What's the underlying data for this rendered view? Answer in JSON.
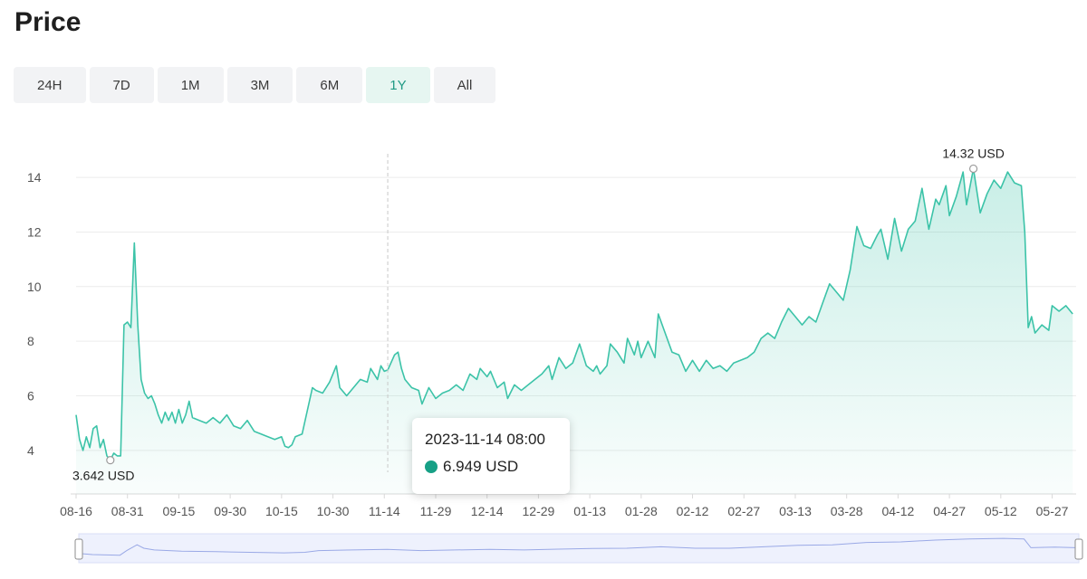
{
  "page": {
    "title": "Price"
  },
  "range_tabs": [
    "24H",
    "7D",
    "1M",
    "3M",
    "6M",
    "1Y",
    "All"
  ],
  "active_range": "1Y",
  "colors": {
    "line": "#3cc3a8",
    "accent": "#1f9a84",
    "tooltip_dot": "#17a086",
    "navigator_line": "#9aa9e6"
  },
  "tooltip": {
    "time": "2023-11-14 08:00",
    "value": "6.949 USD"
  },
  "annotations": {
    "max_label": "14.32 USD",
    "min_label": "3.642 USD"
  },
  "chart_data": {
    "type": "area",
    "title": "",
    "xlabel": "",
    "ylabel": "",
    "unit": "USD",
    "y_ticks": [
      4,
      6,
      8,
      10,
      12,
      14
    ],
    "x_tick_labels": [
      "08-16",
      "08-31",
      "09-15",
      "09-30",
      "10-15",
      "10-30",
      "11-14",
      "11-29",
      "12-14",
      "12-29",
      "01-13",
      "01-28",
      "02-12",
      "02-27",
      "03-13",
      "03-28",
      "04-12",
      "04-27",
      "05-12",
      "05-27"
    ],
    "ylim": [
      3.2,
      14.6
    ],
    "xlim": [
      0,
      292
    ],
    "grid": true,
    "x_interval_days": 15,
    "series": [
      {
        "points": [
          [
            0,
            5.3
          ],
          [
            1,
            4.4
          ],
          [
            2,
            4.0
          ],
          [
            3,
            4.5
          ],
          [
            4,
            4.1
          ],
          [
            5,
            4.8
          ],
          [
            6,
            4.9
          ],
          [
            7,
            4.1
          ],
          [
            8,
            4.4
          ],
          [
            9,
            3.8
          ],
          [
            10,
            3.642
          ],
          [
            11,
            3.9
          ],
          [
            12,
            3.8
          ],
          [
            13,
            3.8
          ],
          [
            14,
            8.6
          ],
          [
            15,
            8.7
          ],
          [
            16,
            8.5
          ],
          [
            17,
            11.6
          ],
          [
            18,
            8.6
          ],
          [
            19,
            6.6
          ],
          [
            20,
            6.1
          ],
          [
            21,
            5.9
          ],
          [
            22,
            6.0
          ],
          [
            23,
            5.7
          ],
          [
            24,
            5.3
          ],
          [
            25,
            5.0
          ],
          [
            26,
            5.4
          ],
          [
            27,
            5.1
          ],
          [
            28,
            5.4
          ],
          [
            29,
            5.0
          ],
          [
            30,
            5.5
          ],
          [
            31,
            5.0
          ],
          [
            32,
            5.3
          ],
          [
            33,
            5.8
          ],
          [
            34,
            5.2
          ],
          [
            36,
            5.1
          ],
          [
            38,
            5.0
          ],
          [
            40,
            5.2
          ],
          [
            42,
            5.0
          ],
          [
            44,
            5.3
          ],
          [
            46,
            4.9
          ],
          [
            48,
            4.8
          ],
          [
            50,
            5.1
          ],
          [
            52,
            4.7
          ],
          [
            54,
            4.6
          ],
          [
            56,
            4.5
          ],
          [
            58,
            4.4
          ],
          [
            60,
            4.5
          ],
          [
            61,
            4.15
          ],
          [
            62,
            4.1
          ],
          [
            63,
            4.2
          ],
          [
            64,
            4.5
          ],
          [
            66,
            4.6
          ],
          [
            69,
            6.3
          ],
          [
            70,
            6.2
          ],
          [
            72,
            6.1
          ],
          [
            74,
            6.5
          ],
          [
            76,
            7.1
          ],
          [
            77,
            6.3
          ],
          [
            79,
            6.0
          ],
          [
            81,
            6.3
          ],
          [
            83,
            6.6
          ],
          [
            85,
            6.5
          ],
          [
            86,
            7.0
          ],
          [
            88,
            6.6
          ],
          [
            89,
            7.1
          ],
          [
            90,
            6.9
          ],
          [
            91,
            6.949
          ],
          [
            93,
            7.5
          ],
          [
            94,
            7.6
          ],
          [
            95,
            7.0
          ],
          [
            96,
            6.6
          ],
          [
            98,
            6.3
          ],
          [
            100,
            6.2
          ],
          [
            101,
            5.7
          ],
          [
            103,
            6.3
          ],
          [
            105,
            5.9
          ],
          [
            107,
            6.1
          ],
          [
            109,
            6.2
          ],
          [
            111,
            6.4
          ],
          [
            113,
            6.2
          ],
          [
            115,
            6.8
          ],
          [
            117,
            6.6
          ],
          [
            118,
            7.0
          ],
          [
            120,
            6.7
          ],
          [
            121,
            6.9
          ],
          [
            123,
            6.3
          ],
          [
            125,
            6.5
          ],
          [
            126,
            5.9
          ],
          [
            128,
            6.4
          ],
          [
            130,
            6.2
          ],
          [
            132,
            6.4
          ],
          [
            134,
            6.6
          ],
          [
            136,
            6.8
          ],
          [
            138,
            7.1
          ],
          [
            139,
            6.6
          ],
          [
            141,
            7.4
          ],
          [
            143,
            7.0
          ],
          [
            145,
            7.2
          ],
          [
            147,
            7.9
          ],
          [
            149,
            7.1
          ],
          [
            151,
            6.9
          ],
          [
            152,
            7.1
          ],
          [
            153,
            6.8
          ],
          [
            155,
            7.1
          ],
          [
            156,
            7.9
          ],
          [
            158,
            7.6
          ],
          [
            160,
            7.2
          ],
          [
            161,
            8.1
          ],
          [
            163,
            7.5
          ],
          [
            164,
            8.0
          ],
          [
            165,
            7.4
          ],
          [
            167,
            8.0
          ],
          [
            169,
            7.4
          ],
          [
            170,
            9.0
          ],
          [
            172,
            8.3
          ],
          [
            174,
            7.6
          ],
          [
            176,
            7.5
          ],
          [
            178,
            6.9
          ],
          [
            180,
            7.3
          ],
          [
            182,
            6.9
          ],
          [
            184,
            7.3
          ],
          [
            186,
            7.0
          ],
          [
            188,
            7.1
          ],
          [
            190,
            6.9
          ],
          [
            192,
            7.2
          ],
          [
            194,
            7.3
          ],
          [
            196,
            7.4
          ],
          [
            198,
            7.6
          ],
          [
            200,
            8.1
          ],
          [
            202,
            8.3
          ],
          [
            204,
            8.1
          ],
          [
            206,
            8.7
          ],
          [
            208,
            9.2
          ],
          [
            210,
            8.9
          ],
          [
            212,
            8.6
          ],
          [
            214,
            8.9
          ],
          [
            216,
            8.7
          ],
          [
            218,
            9.4
          ],
          [
            220,
            10.1
          ],
          [
            222,
            9.8
          ],
          [
            224,
            9.5
          ],
          [
            226,
            10.6
          ],
          [
            228,
            12.2
          ],
          [
            230,
            11.5
          ],
          [
            232,
            11.4
          ],
          [
            234,
            11.9
          ],
          [
            235,
            12.1
          ],
          [
            237,
            11.0
          ],
          [
            239,
            12.5
          ],
          [
            241,
            11.3
          ],
          [
            243,
            12.1
          ],
          [
            245,
            12.4
          ],
          [
            247,
            13.6
          ],
          [
            249,
            12.1
          ],
          [
            251,
            13.2
          ],
          [
            252,
            13.0
          ],
          [
            254,
            13.7
          ],
          [
            255,
            12.6
          ],
          [
            257,
            13.3
          ],
          [
            259,
            14.2
          ],
          [
            260,
            13.0
          ],
          [
            262,
            14.32
          ],
          [
            264,
            12.7
          ],
          [
            266,
            13.4
          ],
          [
            268,
            13.9
          ],
          [
            270,
            13.6
          ],
          [
            272,
            14.2
          ],
          [
            274,
            13.8
          ],
          [
            276,
            13.7
          ],
          [
            277,
            12.0
          ],
          [
            278,
            8.5
          ],
          [
            279,
            8.9
          ],
          [
            280,
            8.3
          ],
          [
            282,
            8.6
          ],
          [
            284,
            8.4
          ],
          [
            285,
            9.3
          ],
          [
            287,
            9.1
          ],
          [
            289,
            9.3
          ],
          [
            291,
            9.0
          ]
        ]
      }
    ],
    "navigator_profile": [
      [
        0,
        0.32
      ],
      [
        4,
        0.28
      ],
      [
        8,
        0.27
      ],
      [
        12,
        0.26
      ],
      [
        14,
        0.42
      ],
      [
        17,
        0.62
      ],
      [
        19,
        0.5
      ],
      [
        22,
        0.44
      ],
      [
        30,
        0.4
      ],
      [
        40,
        0.38
      ],
      [
        50,
        0.36
      ],
      [
        60,
        0.34
      ],
      [
        66,
        0.36
      ],
      [
        70,
        0.42
      ],
      [
        80,
        0.44
      ],
      [
        90,
        0.46
      ],
      [
        100,
        0.42
      ],
      [
        110,
        0.44
      ],
      [
        120,
        0.46
      ],
      [
        130,
        0.44
      ],
      [
        140,
        0.47
      ],
      [
        150,
        0.49
      ],
      [
        160,
        0.5
      ],
      [
        170,
        0.55
      ],
      [
        180,
        0.5
      ],
      [
        190,
        0.5
      ],
      [
        200,
        0.55
      ],
      [
        210,
        0.6
      ],
      [
        220,
        0.62
      ],
      [
        230,
        0.7
      ],
      [
        240,
        0.72
      ],
      [
        250,
        0.78
      ],
      [
        260,
        0.82
      ],
      [
        270,
        0.84
      ],
      [
        276,
        0.82
      ],
      [
        278,
        0.52
      ],
      [
        285,
        0.54
      ],
      [
        291,
        0.52
      ]
    ]
  }
}
